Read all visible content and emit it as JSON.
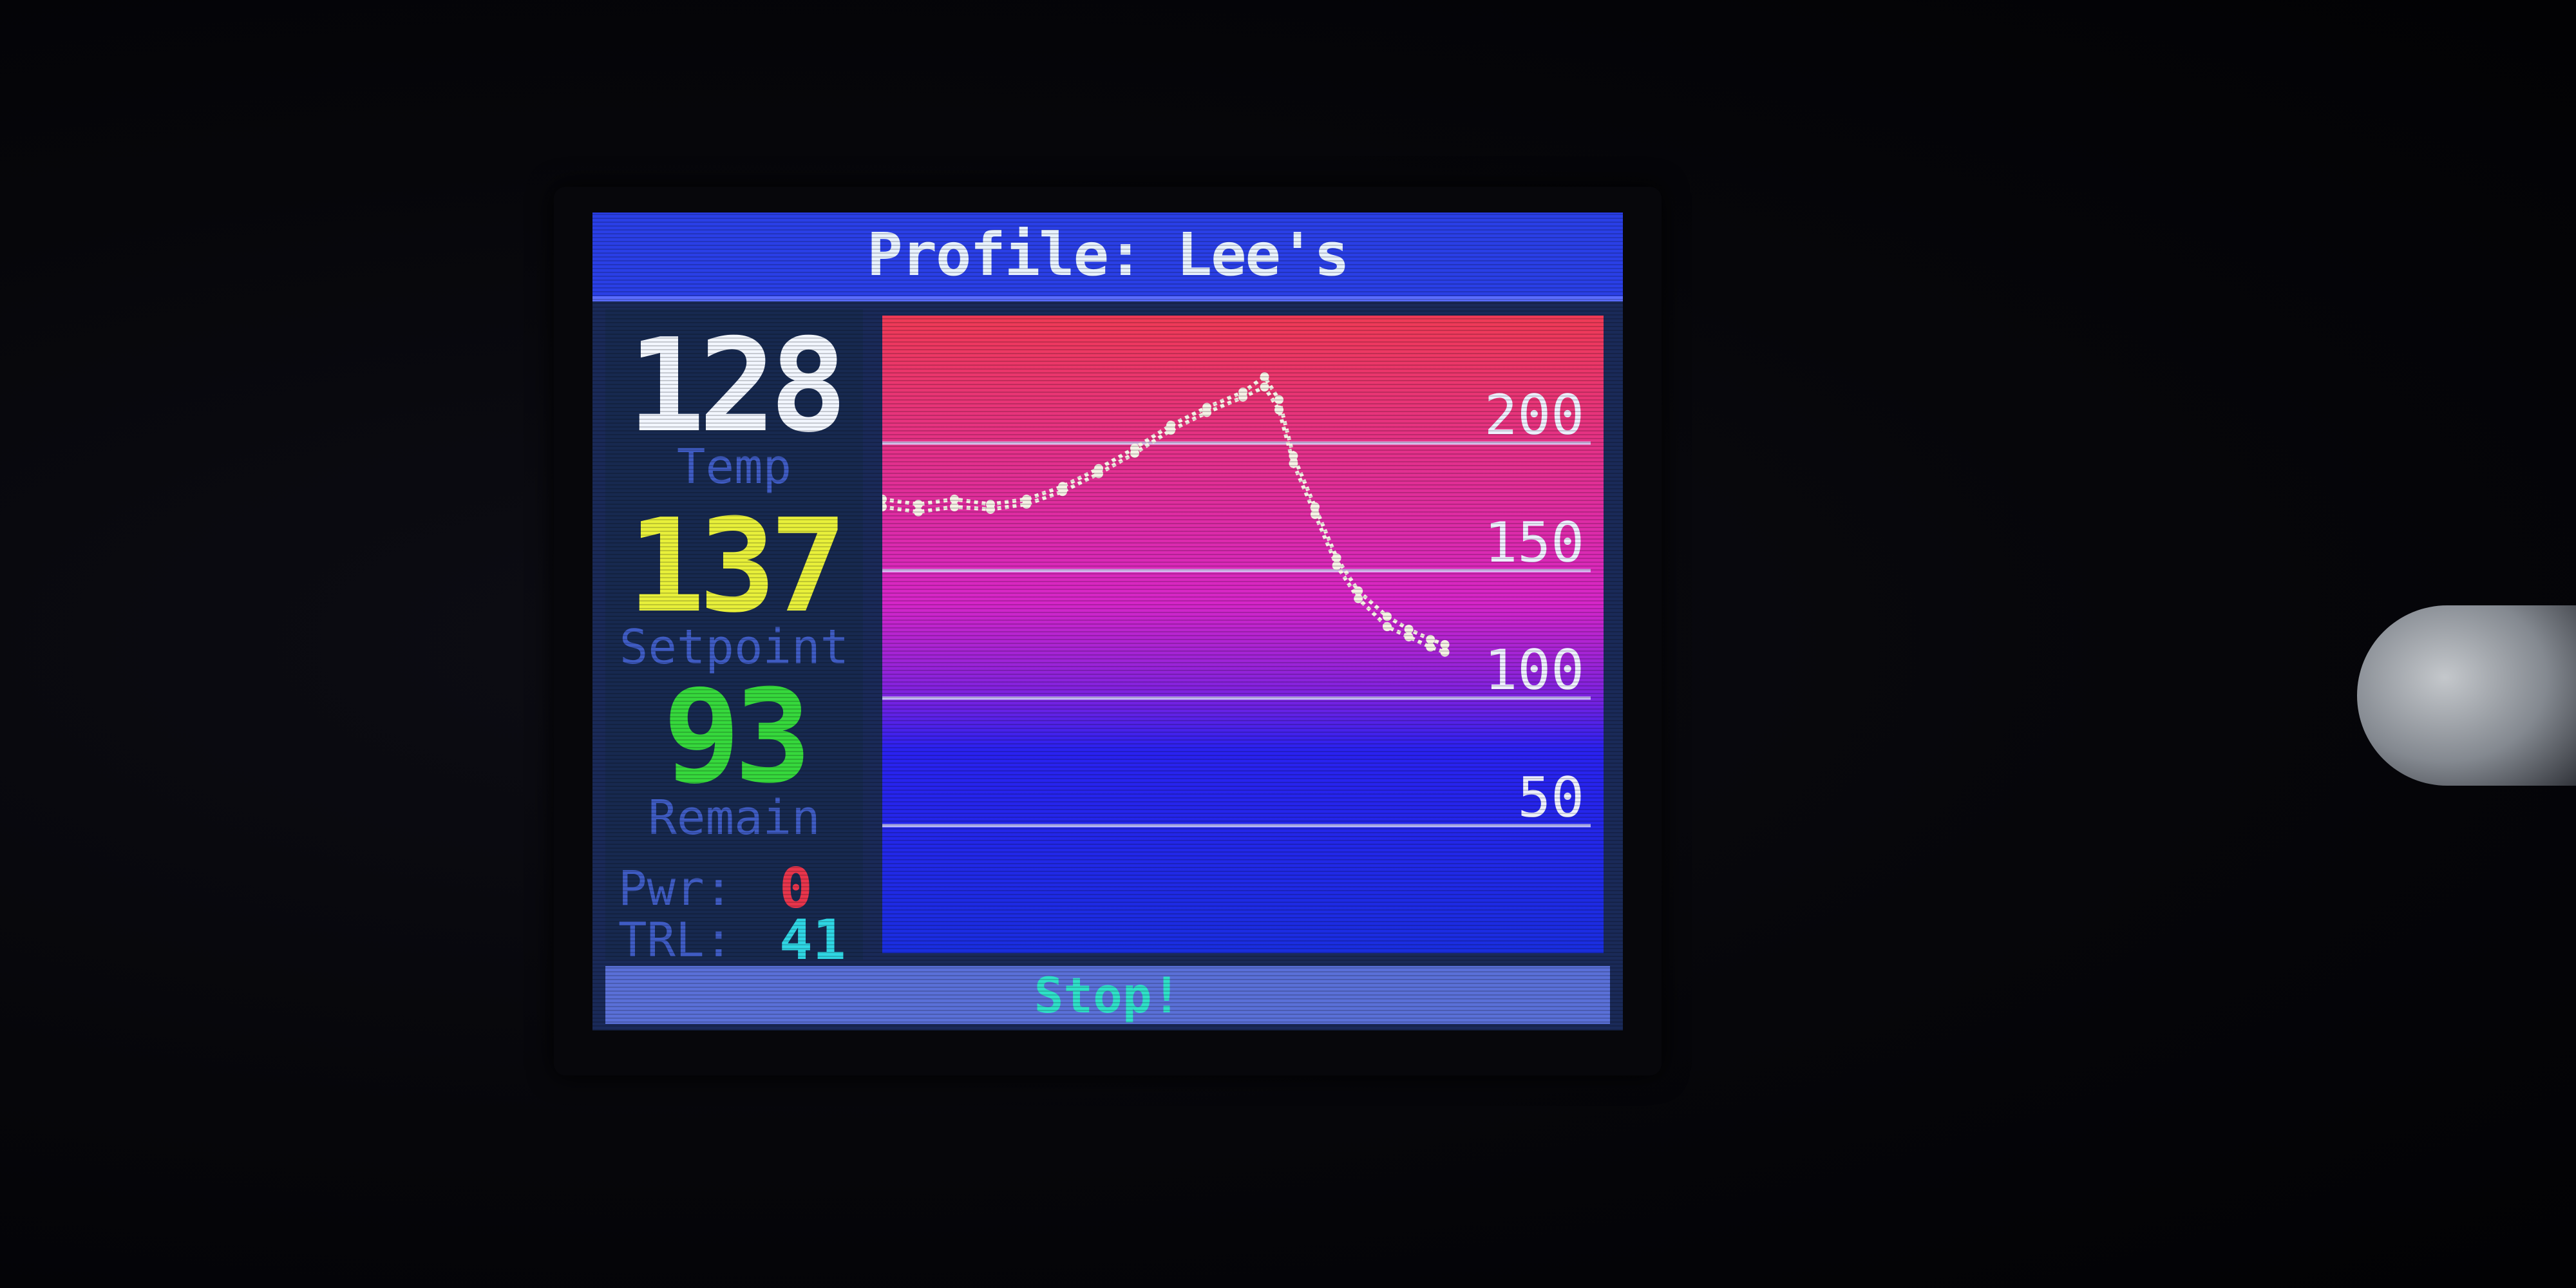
{
  "title": "Profile: Lee's",
  "stats": {
    "temp": {
      "value": "128",
      "label": "Temp",
      "color": "#f2f6ff"
    },
    "setpoint": {
      "value": "137",
      "label": "Setpoint",
      "color": "#e8f03a"
    },
    "remain": {
      "value": "93",
      "label": "Remain",
      "color": "#36d83c"
    },
    "pwr": {
      "label": "Pwr:",
      "value": "0",
      "color": "#e8354c"
    },
    "trl": {
      "label": "TRL:",
      "value": "41",
      "color": "#2fd6e4"
    }
  },
  "status": {
    "label": "Stop!"
  },
  "colors": {
    "title_bar": "#2a3fe6",
    "chart_hot": "#ef3a55",
    "chart_mid": "#d626c8",
    "chart_cool": "#2a22f0",
    "chart_cold": "#1a2ee0",
    "gridline": "#d8d8ff",
    "plot_line": "#f6f2e6"
  },
  "chart_data": {
    "type": "line",
    "ylim": [
      0,
      250
    ],
    "xlim": [
      0,
      100
    ],
    "grid": true,
    "y_ticks": [
      50,
      100,
      150,
      200
    ],
    "series": [
      {
        "x": [
          0,
          5,
          10,
          15,
          20,
          25,
          30,
          35,
          40,
          45,
          50,
          53,
          55,
          57,
          60,
          63,
          66,
          70,
          73,
          76,
          78
        ],
        "y": [
          178,
          176,
          178,
          176,
          178,
          183,
          190,
          198,
          207,
          214,
          220,
          226,
          217,
          195,
          175,
          155,
          142,
          132,
          127,
          123,
          121
        ]
      },
      {
        "x": [
          0,
          5,
          10,
          15,
          20,
          25,
          30,
          35,
          40,
          45,
          50,
          53,
          55,
          57,
          60,
          63,
          66,
          70,
          73,
          76,
          78
        ],
        "y": [
          175,
          173,
          175,
          174,
          176,
          181,
          188,
          196,
          205,
          212,
          218,
          222,
          213,
          192,
          172,
          152,
          139,
          128,
          124,
          120,
          118
        ]
      }
    ]
  }
}
